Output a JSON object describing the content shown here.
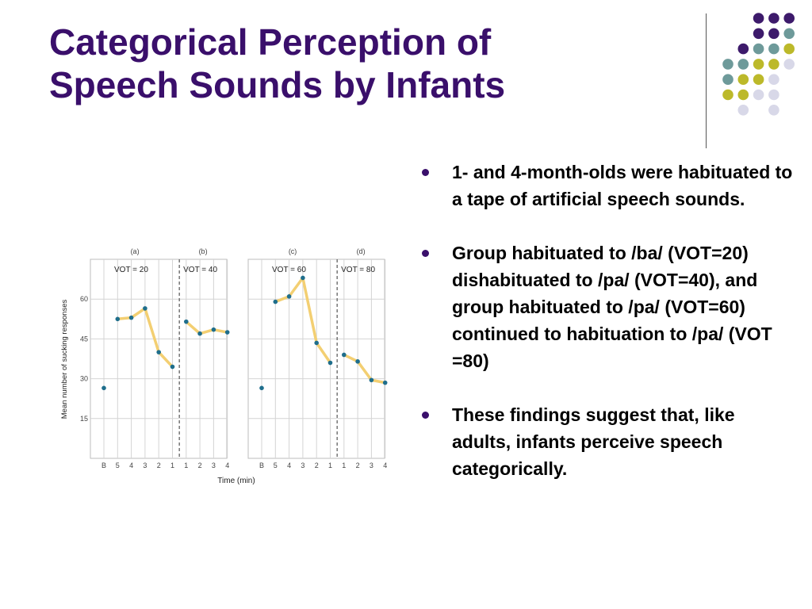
{
  "slide": {
    "title_line1": "Categorical Perception of",
    "title_line2": "Speech Sounds by Infants",
    "bullets": [
      "1- and 4-month-olds were habituated to a tape of artificial speech sounds.",
      "Group habituated to /ba/ (VOT=20) dishabituated to /pa/ (VOT=40), and group habituated to /pa/ (VOT=60) continued to habituation to /pa/ (VOT =80)",
      "These findings suggest that, like adults, infants perceive speech categorically."
    ],
    "colors": {
      "title": "#3a0f6b",
      "purple": "#3d1a6b",
      "teal": "#6e9a9a",
      "olive": "#bcb92a",
      "lavender": "#d8d8e8"
    }
  },
  "chart_data": {
    "type": "line",
    "ylabel": "Mean number of sucking responses",
    "xlabel": "Time (min)",
    "ylim": [
      0,
      75
    ],
    "yticks": [
      15,
      30,
      45,
      60
    ],
    "grid": true,
    "line_color": "#f3cf72",
    "point_color": "#1f6e8c",
    "x_categories": [
      "B",
      "5",
      "4",
      "3",
      "2",
      "1",
      "1",
      "2",
      "3",
      "4"
    ],
    "panels": [
      {
        "panels_label": [
          "(a)",
          "(b)"
        ],
        "conditions": [
          "VOT = 20",
          "VOT = 40"
        ],
        "baseline": 26.5,
        "habituation": [
          52.5,
          53,
          56.5,
          40,
          34.5
        ],
        "test": [
          51.5,
          47,
          48.5,
          47.5
        ]
      },
      {
        "panels_label": [
          "(c)",
          "(d)"
        ],
        "conditions": [
          "VOT = 60",
          "VOT = 80"
        ],
        "baseline": 26.5,
        "habituation": [
          59,
          61,
          68,
          43.5,
          36
        ],
        "test": [
          39,
          36.5,
          29.5,
          28.5
        ]
      }
    ]
  }
}
